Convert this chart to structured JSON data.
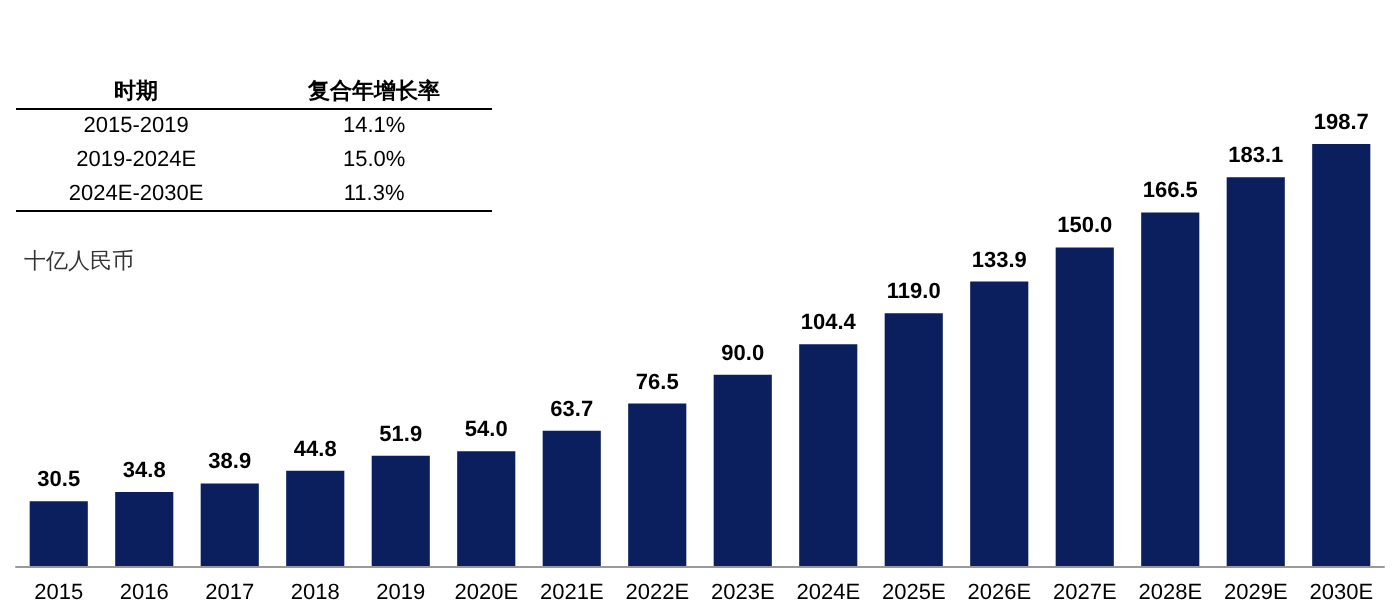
{
  "chart_data": {
    "type": "bar",
    "categories": [
      "2015",
      "2016",
      "2017",
      "2018",
      "2019",
      "2020E",
      "2021E",
      "2022E",
      "2023E",
      "2024E",
      "2025E",
      "2026E",
      "2027E",
      "2028E",
      "2029E",
      "2030E"
    ],
    "values": [
      30.5,
      34.8,
      38.9,
      44.8,
      51.9,
      54.0,
      63.7,
      76.5,
      90.0,
      104.4,
      119.0,
      133.9,
      150.0,
      166.5,
      183.1,
      198.7
    ],
    "value_labels": [
      "30.5",
      "34.8",
      "38.9",
      "44.8",
      "51.9",
      "54.0",
      "63.7",
      "76.5",
      "90.0",
      "104.4",
      "119.0",
      "133.9",
      "150.0",
      "166.5",
      "183.1",
      "198.7"
    ],
    "color": "#0b1f5e",
    "ylabel": "十亿人民币",
    "annotations": [
      "时期",
      "复合年增长率",
      "2015-2019",
      "14.1%",
      "2019-2024E",
      "15.0%",
      "2024E-2030E",
      "11.3%"
    ]
  }
}
